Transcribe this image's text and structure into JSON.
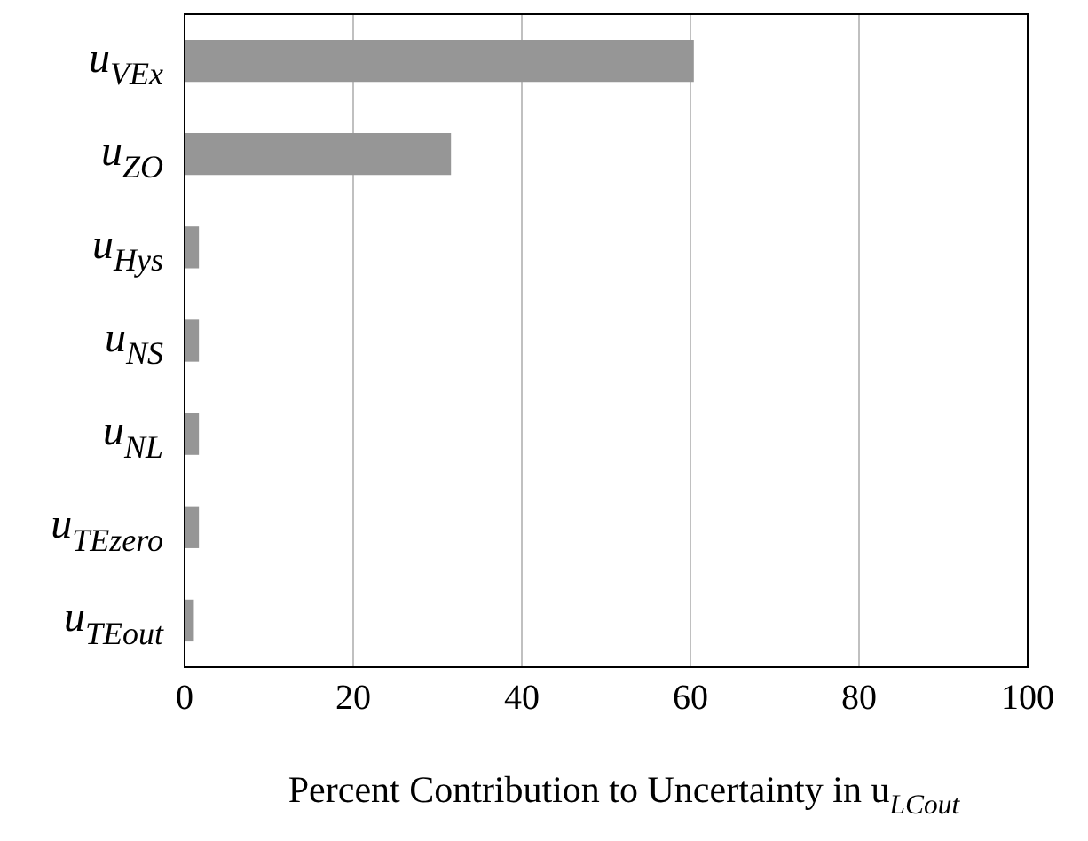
{
  "chart_data": {
    "type": "bar",
    "orientation": "horizontal",
    "xlabel": "Percent Contribution to Uncertainty in u$_{LCout}$",
    "categories": [
      "u$_{VEx}$",
      "u$_{ZO}$",
      "u$_{Hys}$",
      "u$_{NS}$",
      "u$_{NL}$",
      "u$_{TEzero}$",
      "u$_{TEout}$"
    ],
    "values": [
      60.4,
      31.6,
      1.7,
      1.7,
      1.7,
      1.7,
      1.1
    ],
    "color": "#969696",
    "xlim": [
      0,
      100
    ],
    "xticks": [
      0,
      20,
      40,
      60,
      80,
      100
    ],
    "grid": "x"
  }
}
